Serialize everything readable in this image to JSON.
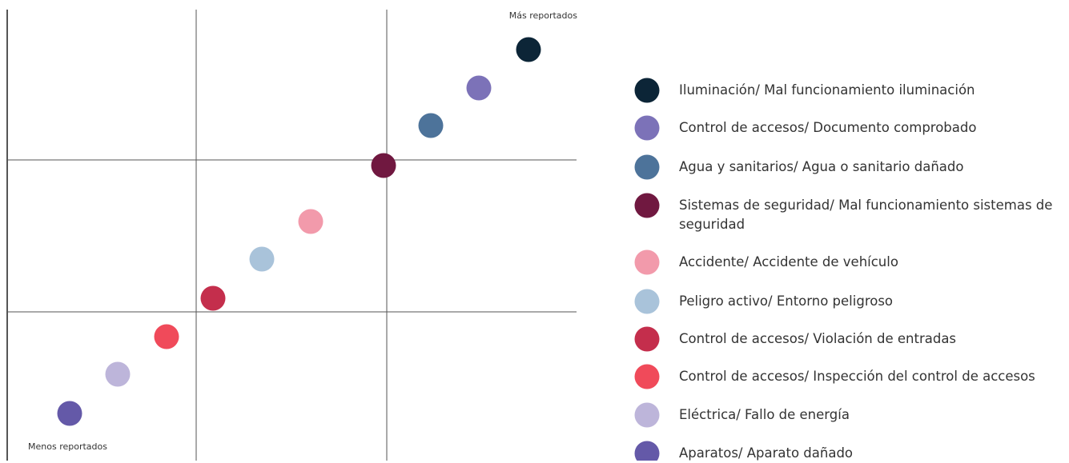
{
  "labels": {
    "top": "Más reportados",
    "bottom": "Menos reportados"
  },
  "items": [
    {
      "name": "Iluminación/ Mal funcionamiento iluminación",
      "color": "#0c2537"
    },
    {
      "name": "Control de accesos/ Documento comprobado",
      "color": "#7c72b8"
    },
    {
      "name": "Agua y sanitarios/ Agua o sanitario dañado",
      "color": "#4d739a"
    },
    {
      "name": "Sistemas de seguridad/ Mal funcionamiento sistemas de seguridad",
      "color": "#701840"
    },
    {
      "name": "Accidente/ Accidente de vehículo",
      "color": "#f29aab"
    },
    {
      "name": "Peligro activo/ Entorno peligroso",
      "color": "#a9c3da"
    },
    {
      "name": "Control de accesos/ Violación de entradas",
      "color": "#c42e4c"
    },
    {
      "name": "Control de accesos/ Inspección del control de accesos",
      "color": "#f04a5a"
    },
    {
      "name": "Eléctrica/ Fallo de energía",
      "color": "#bdb5da"
    },
    {
      "name": "Aparatos/ Aparato dañado",
      "color": "#6459a8"
    }
  ]
}
